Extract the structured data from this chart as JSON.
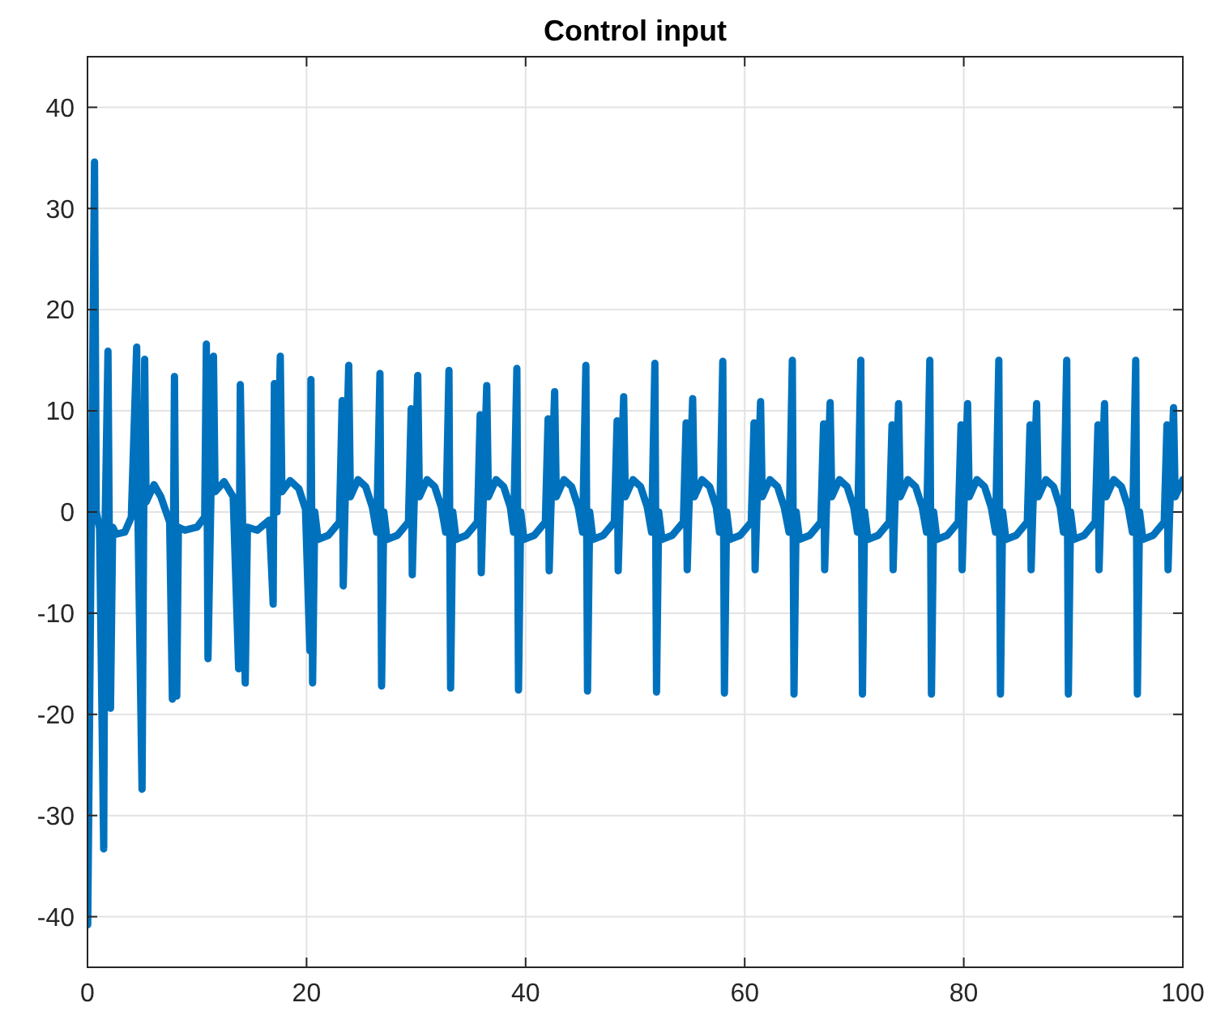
{
  "chart_data": {
    "type": "line",
    "title": "Control input",
    "xlim": [
      0,
      100
    ],
    "ylim": [
      -45,
      45
    ],
    "xticks": [
      0,
      20,
      40,
      60,
      80,
      100
    ],
    "yticks": [
      -40,
      -30,
      -20,
      -10,
      0,
      10,
      20,
      30,
      40
    ],
    "grid": true,
    "line_style": "solid",
    "marker": "none",
    "series": [
      {
        "color": "#0072bd",
        "x": [
          0,
          0.02,
          0.64,
          0.8,
          1.1,
          1.48,
          1.6,
          1.87,
          2.1,
          2.3,
          2.6,
          3.4,
          4.0,
          4.49,
          4.6,
          4.98,
          5.22,
          5.35,
          6.07,
          6.7,
          7.5,
          7.75,
          7.94,
          8.15,
          8.3,
          8.9,
          10.0,
          10.7,
          10.85,
          11.0,
          11.5,
          11.65,
          12.47,
          13.3,
          13.8,
          13.95,
          14.4,
          14.6,
          15.5,
          16.6,
          16.95,
          17.06,
          17.3,
          17.6,
          17.75,
          18.5,
          19.3,
          19.9,
          20.3,
          20.4,
          20.55,
          20.75,
          21.05,
          22.0,
          23.0,
          23.25,
          23.35,
          23.5,
          23.85,
          24.0,
          24.7,
          25.4,
          26.0,
          26.4,
          26.7,
          26.85,
          27.05,
          27.35,
          28.3,
          29.3,
          29.55,
          29.65,
          29.8,
          30.15,
          30.3,
          31.0,
          31.7,
          32.3,
          32.7,
          33.0,
          33.15,
          33.35,
          33.65,
          34.6,
          35.6,
          35.85,
          35.95,
          36.1,
          36.45,
          36.6,
          37.3,
          38.0,
          38.6,
          38.9,
          39.2,
          39.35,
          39.55,
          39.85,
          40.8,
          41.8,
          42.05,
          42.15,
          42.3,
          42.65,
          42.8,
          43.5,
          44.2,
          44.8,
          45.2,
          45.5,
          45.65,
          45.85,
          46.15,
          47.1,
          48.1,
          48.35,
          48.45,
          48.6,
          48.95,
          49.1,
          49.8,
          50.5,
          51.1,
          51.5,
          51.8,
          51.95,
          52.15,
          52.45,
          53.4,
          54.4,
          54.65,
          54.75,
          54.9,
          55.25,
          55.4,
          56.1,
          56.8,
          57.4,
          57.7,
          58.0,
          58.15,
          58.35,
          58.65,
          59.6,
          60.6,
          60.85,
          60.95,
          61.1,
          61.45,
          61.6,
          62.3,
          63.0,
          63.6,
          64.05,
          64.35,
          64.5,
          64.7,
          65.0,
          65.95,
          66.95,
          67.2,
          67.3,
          67.45,
          67.8,
          67.95,
          68.65,
          69.35,
          69.95,
          70.3,
          70.6,
          70.75,
          70.95,
          71.25,
          72.2,
          73.2,
          73.45,
          73.55,
          73.7,
          74.05,
          74.2,
          74.9,
          75.6,
          76.2,
          76.6,
          76.9,
          77.05,
          77.25,
          77.55,
          78.5,
          79.5,
          79.75,
          79.85,
          80.0,
          80.35,
          80.5,
          81.2,
          81.9,
          82.5,
          82.9,
          83.2,
          83.35,
          83.55,
          83.85,
          84.8,
          85.8,
          86.05,
          86.15,
          86.3,
          86.65,
          86.8,
          87.5,
          88.2,
          88.8,
          89.1,
          89.4,
          89.55,
          89.75,
          90.05,
          91.0,
          92.0,
          92.25,
          92.35,
          92.5,
          92.85,
          93.0,
          93.7,
          94.4,
          95.0,
          95.4,
          95.7,
          95.85,
          96.05,
          96.35,
          97.3,
          98.3,
          98.55,
          98.65,
          98.8,
          99.15,
          99.3,
          100
        ],
        "values": [
          0,
          -40.8,
          34.6,
          0,
          -1.6,
          -33.3,
          -1.6,
          15.9,
          -19.4,
          -1.5,
          -2.2,
          -2,
          -0.5,
          16.3,
          0,
          -27.4,
          15.1,
          1,
          2.7,
          1.5,
          -1,
          -18.5,
          13.4,
          -18.2,
          -1.5,
          -1.8,
          -1.5,
          -0.5,
          16.6,
          -14.5,
          15.4,
          2,
          3,
          1.5,
          -15.5,
          12.6,
          -16.9,
          -1.5,
          -1.8,
          -0.8,
          -9.1,
          12.7,
          0,
          15.4,
          2,
          3.1,
          2.3,
          0.3,
          -13.7,
          13.1,
          -16.9,
          0,
          -2.7,
          -2.3,
          -1,
          11,
          -7.3,
          0,
          14.5,
          1.5,
          3.2,
          2.5,
          0.5,
          -2,
          13.7,
          -17.2,
          0,
          -2.7,
          -2.3,
          -1,
          10.2,
          -6.2,
          0,
          13.5,
          1.5,
          3.2,
          2.5,
          0.5,
          -2,
          14,
          -17.4,
          0,
          -2.7,
          -2.3,
          -1,
          9.6,
          -6,
          0,
          12.5,
          1.5,
          3.2,
          2.5,
          0.5,
          -2,
          14.2,
          -17.6,
          0,
          -2.7,
          -2.3,
          -1,
          9.2,
          -5.8,
          0,
          11.9,
          1.5,
          3.2,
          2.5,
          0.5,
          -2,
          14.5,
          -17.7,
          0,
          -2.7,
          -2.3,
          -1,
          9,
          -5.8,
          0,
          11.4,
          1.5,
          3.2,
          2.5,
          0.5,
          -2,
          14.7,
          -17.8,
          0,
          -2.7,
          -2.3,
          -1,
          8.8,
          -5.7,
          0,
          11.2,
          1.5,
          3.2,
          2.5,
          0.5,
          -2,
          14.9,
          -17.9,
          0,
          -2.7,
          -2.3,
          -1,
          8.8,
          -5.7,
          0,
          10.9,
          1.5,
          3.2,
          2.5,
          0.5,
          -2,
          15,
          -18,
          0,
          -2.7,
          -2.3,
          -1,
          8.7,
          -5.7,
          0,
          10.8,
          1.5,
          3.2,
          2.5,
          0.5,
          -2,
          15,
          -18,
          0,
          -2.7,
          -2.3,
          -1,
          8.6,
          -5.7,
          0,
          10.7,
          1.5,
          3.2,
          2.5,
          0.5,
          -2,
          15,
          -18,
          0,
          -2.7,
          -2.3,
          -1,
          8.6,
          -5.7,
          0,
          10.7,
          1.5,
          3.2,
          2.5,
          0.5,
          -2,
          15,
          -18,
          0,
          -2.7,
          -2.3,
          -1,
          8.6,
          -5.7,
          0,
          10.7,
          1.5,
          3.2,
          2.5,
          0.5,
          -2,
          15,
          -18,
          0,
          -2.7,
          -2.3,
          -1,
          8.6,
          -5.7,
          0,
          10.7,
          1.5,
          3.2,
          2.5,
          0.5,
          -2,
          15,
          -18,
          0,
          -2.7,
          -2.3,
          -1,
          8.6,
          -5.7,
          0,
          10.3,
          1.5,
          3.2
        ]
      }
    ]
  }
}
